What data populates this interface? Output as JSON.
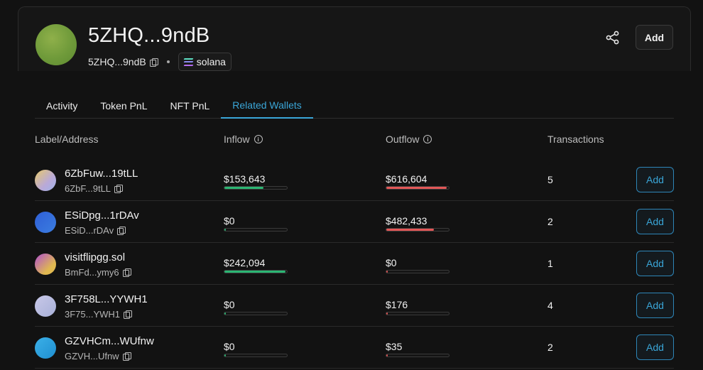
{
  "wallet": {
    "title": "5ZHQ...9ndB",
    "short_address": "5ZHQ...9ndB",
    "chain": "solana",
    "avatar_color": "#7aa23d"
  },
  "header": {
    "share_icon": "share-icon",
    "add_label": "Add"
  },
  "tabs": [
    {
      "label": "Activity",
      "active": false
    },
    {
      "label": "Token PnL",
      "active": false
    },
    {
      "label": "NFT PnL",
      "active": false
    },
    {
      "label": "Related Wallets",
      "active": true
    }
  ],
  "table": {
    "columns": {
      "label": "Label/Address",
      "inflow": "Inflow",
      "outflow": "Outflow",
      "transactions": "Transactions"
    },
    "rows": [
      {
        "name": "6ZbFuw...19tLL",
        "short": "6ZbF...9tLL",
        "inflow": "$153,643",
        "inflow_fraction": 0.62,
        "outflow": "$616,604",
        "outflow_fraction": 0.97,
        "transactions": "5",
        "add_label": "Add",
        "avatar": "linear-gradient(135deg,#e7c96a,#b9a9d8 60%,#9fb3e8)"
      },
      {
        "name": "ESiDpg...1rDAv",
        "short": "ESiD...rDAv",
        "inflow": "$0",
        "inflow_fraction": 0.02,
        "outflow": "$482,433",
        "outflow_fraction": 0.76,
        "transactions": "2",
        "add_label": "Add",
        "avatar": "linear-gradient(135deg,#2f5fd6,#3b7de0)"
      },
      {
        "name": "visitflipgg.sol",
        "short": "BmFd...ymy6",
        "inflow": "$242,094",
        "inflow_fraction": 0.98,
        "outflow": "$0",
        "outflow_fraction": 0.02,
        "transactions": "1",
        "add_label": "Add",
        "avatar": "linear-gradient(135deg,#b04fd0,#e0b850 70%)"
      },
      {
        "name": "3F758L...YYWH1",
        "short": "3F75...YWH1",
        "inflow": "$0",
        "inflow_fraction": 0.02,
        "outflow": "$176",
        "outflow_fraction": 0.02,
        "transactions": "4",
        "add_label": "Add",
        "avatar": "linear-gradient(135deg,#c8c8e8,#a8b0d8)"
      },
      {
        "name": "GZVHCm...WUfnw",
        "short": "GZVH...Ufnw",
        "inflow": "$0",
        "inflow_fraction": 0.02,
        "outflow": "$35",
        "outflow_fraction": 0.02,
        "transactions": "2",
        "add_label": "Add",
        "avatar": "linear-gradient(135deg,#3bb0e8,#1f8fd0)"
      }
    ]
  }
}
